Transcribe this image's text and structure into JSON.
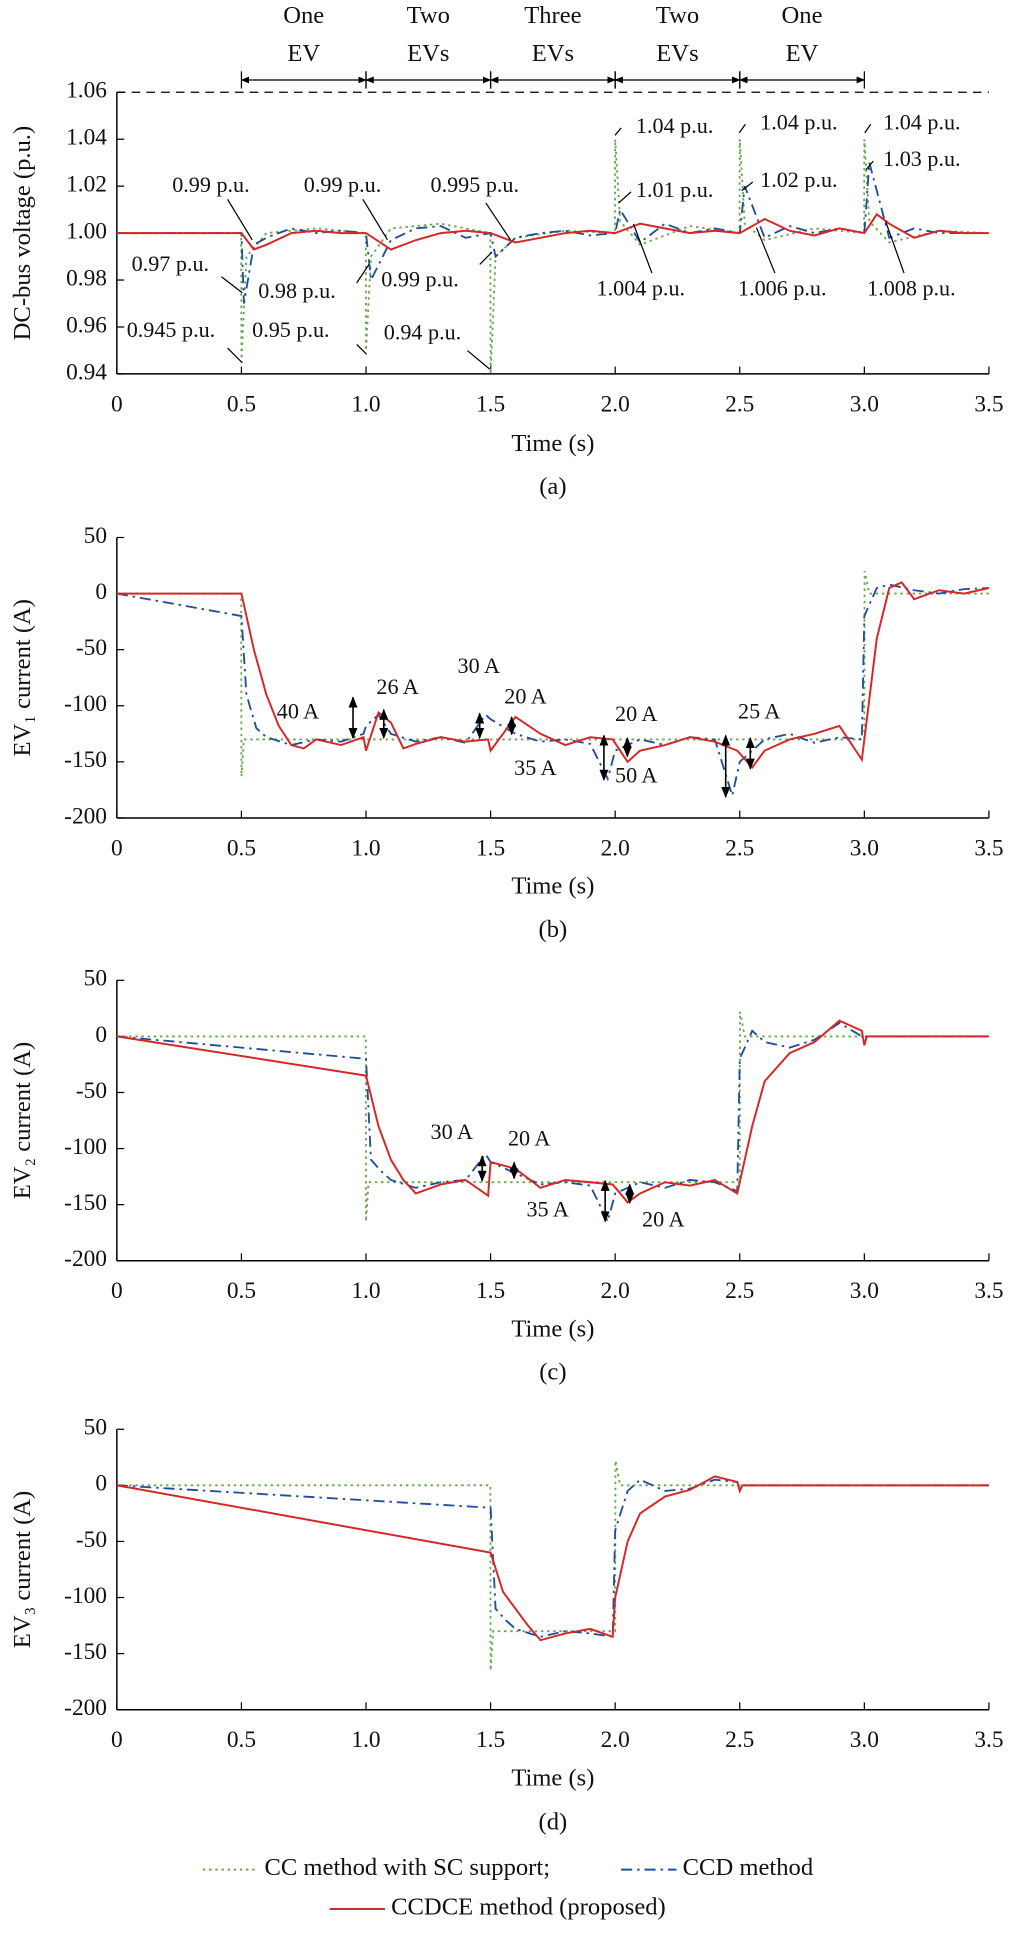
{
  "chart_data": [
    {
      "type": "line",
      "caption": "(a)",
      "xlabel": "Time (s)",
      "ylabel": "DC-bus voltage (p.u.)",
      "xlim": [
        0,
        3.5
      ],
      "ylim": [
        0.94,
        1.06
      ],
      "limit_line": true,
      "xticks": [
        0,
        0.5,
        {
          "value": 1,
          "label": "1.0"
        },
        1.5,
        {
          "value": 2,
          "label": "2.0"
        },
        2.5,
        {
          "value": 3,
          "label": "3.0"
        },
        3.5
      ],
      "yticks": [
        0.94,
        0.96,
        0.98,
        {
          "value": 1,
          "label": "1.00"
        },
        1.02,
        1.04,
        1.06
      ],
      "phases": [
        {
          "label": [
            "One",
            "EV"
          ],
          "start": 0.5,
          "end": 1.0
        },
        {
          "label": [
            "Two",
            "EVs"
          ],
          "start": 1.0,
          "end": 1.5
        },
        {
          "label": [
            "Three",
            "EVs"
          ],
          "start": 1.5,
          "end": 2.0
        },
        {
          "label": [
            "Two",
            "EVs"
          ],
          "start": 2.0,
          "end": 2.5
        },
        {
          "label": [
            "One",
            "EV"
          ],
          "start": 2.5,
          "end": 3.0
        }
      ],
      "annotations": [
        "0.99 p.u.",
        "0.97 p.u.",
        "0.945 p.u.",
        "0.99 p.u.",
        "0.98 p.u.",
        "0.95 p.u.",
        "0.995 p.u.",
        "0.99 p.u.",
        "0.94 p.u.",
        "1.04 p.u.",
        "1.01 p.u.",
        "1.004 p.u.",
        "1.04 p.u.",
        "1.02 p.u.",
        "1.006 p.u.",
        "1.04 p.u.",
        "1.03 p.u.",
        "1.008 p.u."
      ],
      "series": [
        {
          "name": "CC method with SC support;",
          "color": "#6aa84f",
          "style": "dotted",
          "x": [
            0,
            0.499,
            0.5,
            0.52,
            0.6,
            0.8,
            0.999,
            1.0,
            1.02,
            1.1,
            1.3,
            1.499,
            1.5,
            1.52,
            1.6,
            1.8,
            1.999,
            2.0,
            2.02,
            2.1,
            2.3,
            2.499,
            2.5,
            2.52,
            2.6,
            2.8,
            2.999,
            3.0,
            3.02,
            3.1,
            3.3,
            3.5
          ],
          "values": [
            1,
            1,
            0.945,
            0.99,
            1.0,
            1.002,
            1,
            0.95,
            0.99,
            1.002,
            1.004,
            1,
            0.94,
            0.99,
            0.998,
            1.001,
            1,
            1.04,
            1.005,
            0.995,
            1.003,
            1,
            1.04,
            1.004,
            0.997,
            1.002,
            1,
            1.04,
            1.005,
            0.996,
            1.001,
            1
          ]
        },
        {
          "name": "CCD method",
          "color": "#1f4e9c",
          "style": "dashdot",
          "x": [
            0,
            0.5,
            0.51,
            0.55,
            0.6,
            0.7,
            0.8,
            0.9,
            1.0,
            1.02,
            1.1,
            1.2,
            1.3,
            1.4,
            1.5,
            1.52,
            1.6,
            1.7,
            1.8,
            1.9,
            2.0,
            2.02,
            2.1,
            2.2,
            2.3,
            2.4,
            2.5,
            2.52,
            2.6,
            2.7,
            2.8,
            2.9,
            3.0,
            3.02,
            3.1,
            3.2,
            3.3,
            3.5
          ],
          "values": [
            1,
            1,
            0.97,
            0.995,
            0.998,
            1.002,
            1.0,
            1.001,
            1.0,
            0.98,
            0.997,
            1.002,
            1.003,
            0.998,
            1.0,
            0.99,
            0.998,
            1.0,
            1.001,
            0.999,
            1.0,
            1.01,
            0.996,
            1.004,
            1.0,
            1.002,
            1.0,
            1.02,
            0.998,
            1.003,
            1.0,
            1.002,
            1.0,
            1.03,
            0.998,
            1.002,
            1.0,
            1.0
          ]
        },
        {
          "name": "CCDCE method (proposed)",
          "color": "#d62728",
          "style": "solid",
          "x": [
            0,
            0.5,
            0.55,
            0.6,
            0.7,
            0.8,
            0.9,
            1.0,
            1.1,
            1.2,
            1.3,
            1.4,
            1.5,
            1.6,
            1.7,
            1.8,
            1.9,
            2.0,
            2.1,
            2.2,
            2.3,
            2.4,
            2.5,
            2.6,
            2.7,
            2.8,
            2.9,
            3.0,
            3.05,
            3.1,
            3.2,
            3.3,
            3.4,
            3.5
          ],
          "values": [
            1,
            1,
            0.993,
            0.995,
            1.0,
            1.001,
            1.0,
            1.0,
            0.993,
            0.997,
            1.0,
            1.001,
            1.0,
            0.996,
            0.998,
            1.0,
            1.001,
            1.0,
            1.004,
            1.002,
            1.0,
            1.001,
            1.0,
            1.006,
            1.001,
            0.999,
            1.002,
            1.0,
            1.008,
            1.004,
            0.998,
            1.001,
            1.0,
            1.0
          ]
        }
      ]
    },
    {
      "type": "line",
      "caption": "(b)",
      "xlabel": "Time (s)",
      "ylabel": "EV₁ current (A)",
      "xlim": [
        0,
        3.5
      ],
      "ylim": [
        -200,
        50
      ],
      "xticks": [
        0,
        0.5,
        {
          "value": 1,
          "label": "1.0"
        },
        1.5,
        {
          "value": 2,
          "label": "2.0"
        },
        2.5,
        {
          "value": 3,
          "label": "3.0"
        },
        3.5
      ],
      "yticks": [
        -200,
        -150,
        -100,
        -50,
        0,
        50
      ],
      "annotations": [
        "40 A",
        "26 A",
        "30 A",
        "20 A",
        "20 A",
        "35 A",
        "50 A",
        "25 A"
      ],
      "series": [
        {
          "color": "#6aa84f",
          "style": "dotted",
          "x": [
            0,
            0.499,
            0.5,
            0.51,
            3.0,
            3.001,
            3.02,
            3.5
          ],
          "values": [
            0,
            0,
            -163,
            -130,
            -130,
            20,
            0,
            0
          ]
        },
        {
          "color": "#1f4e9c",
          "style": "dashdot",
          "x": [
            0,
            0.5,
            0.52,
            0.56,
            0.6,
            0.7,
            0.8,
            0.9,
            0.99,
            1.0,
            1.05,
            1.1,
            1.2,
            1.3,
            1.4,
            1.48,
            1.5,
            1.6,
            1.7,
            1.8,
            1.9,
            1.97,
            2.0,
            2.1,
            2.2,
            2.3,
            2.4,
            2.47,
            2.5,
            2.6,
            2.7,
            2.8,
            2.9,
            2.99,
            3.0,
            3.05,
            3.1,
            3.2,
            3.3,
            3.4,
            3.5
          ],
          "values": [
            0,
            -20,
            -90,
            -120,
            -128,
            -135,
            -130,
            -132,
            -125,
            -118,
            -108,
            -125,
            -132,
            -128,
            -133,
            -108,
            -112,
            -125,
            -132,
            -130,
            -134,
            -165,
            -140,
            -130,
            -135,
            -128,
            -130,
            -180,
            -150,
            -130,
            -125,
            -133,
            -128,
            -130,
            -20,
            5,
            8,
            3,
            0,
            4,
            5
          ]
        },
        {
          "color": "#d62728",
          "style": "solid",
          "x": [
            0,
            0.5,
            0.55,
            0.6,
            0.65,
            0.7,
            0.75,
            0.8,
            0.9,
            0.99,
            1.0,
            1.05,
            1.1,
            1.15,
            1.2,
            1.3,
            1.4,
            1.49,
            1.5,
            1.6,
            1.7,
            1.8,
            1.9,
            1.99,
            2.05,
            2.1,
            2.2,
            2.3,
            2.4,
            2.49,
            2.55,
            2.6,
            2.7,
            2.8,
            2.9,
            2.99,
            3.05,
            3.1,
            3.15,
            3.2,
            3.3,
            3.4,
            3.5
          ],
          "values": [
            0,
            0,
            -50,
            -90,
            -118,
            -135,
            -138,
            -130,
            -135,
            -128,
            -140,
            -106,
            -115,
            -138,
            -134,
            -128,
            -132,
            -130,
            -140,
            -110,
            -125,
            -135,
            -128,
            -130,
            -150,
            -140,
            -135,
            -128,
            -132,
            -140,
            -155,
            -140,
            -130,
            -125,
            -118,
            -148,
            -40,
            5,
            10,
            -5,
            3,
            0,
            5
          ]
        }
      ]
    },
    {
      "type": "line",
      "caption": "(c)",
      "xlabel": "Time (s)",
      "ylabel": "EV₂ current (A)",
      "xlim": [
        0,
        3.5
      ],
      "ylim": [
        -200,
        50
      ],
      "xticks": [
        0,
        0.5,
        {
          "value": 1,
          "label": "1.0"
        },
        1.5,
        {
          "value": 2,
          "label": "2.0"
        },
        2.5,
        {
          "value": 3,
          "label": "3.0"
        },
        3.5
      ],
      "yticks": [
        -200,
        -150,
        -100,
        -50,
        0,
        50
      ],
      "annotations": [
        "30 A",
        "20 A",
        "35 A",
        "20 A"
      ],
      "series": [
        {
          "color": "#6aa84f",
          "style": "dotted",
          "x": [
            0,
            0.999,
            1.0,
            1.01,
            2.5,
            2.501,
            2.52,
            3.5
          ],
          "values": [
            0,
            0,
            -165,
            -130,
            -130,
            22,
            0,
            0
          ]
        },
        {
          "color": "#1f4e9c",
          "style": "dashdot",
          "x": [
            0,
            1.0,
            1.02,
            1.06,
            1.1,
            1.2,
            1.3,
            1.4,
            1.48,
            1.5,
            1.6,
            1.7,
            1.8,
            1.9,
            1.97,
            2.0,
            2.1,
            2.2,
            2.3,
            2.4,
            2.49,
            2.5,
            2.55,
            2.6,
            2.7,
            2.8,
            2.9,
            2.99,
            3.0,
            3.1,
            3.5
          ],
          "values": [
            0,
            -20,
            -110,
            -120,
            -128,
            -135,
            -130,
            -128,
            -105,
            -112,
            -122,
            -132,
            -130,
            -133,
            -165,
            -140,
            -130,
            -135,
            -128,
            -130,
            -138,
            -20,
            5,
            -5,
            -10,
            -3,
            12,
            0,
            0,
            0,
            0
          ]
        },
        {
          "color": "#d62728",
          "style": "solid",
          "x": [
            0,
            1.0,
            1.05,
            1.1,
            1.15,
            1.2,
            1.3,
            1.4,
            1.49,
            1.5,
            1.6,
            1.7,
            1.8,
            1.9,
            1.99,
            2.05,
            2.1,
            2.2,
            2.3,
            2.4,
            2.49,
            2.55,
            2.6,
            2.7,
            2.8,
            2.9,
            2.99,
            3.0,
            3.01,
            3.5
          ],
          "values": [
            0,
            -35,
            -80,
            -110,
            -128,
            -140,
            -132,
            -128,
            -142,
            -112,
            -118,
            -135,
            -128,
            -130,
            -132,
            -148,
            -140,
            -130,
            -133,
            -128,
            -140,
            -80,
            -40,
            -15,
            -5,
            14,
            5,
            -8,
            0,
            0
          ]
        }
      ]
    },
    {
      "type": "line",
      "caption": "(d)",
      "xlabel": "Time (s)",
      "ylabel": "EV₃ current (A)",
      "xlim": [
        0,
        3.5
      ],
      "ylim": [
        -200,
        50
      ],
      "xticks": [
        0,
        0.5,
        {
          "value": 1,
          "label": "1.0"
        },
        1.5,
        {
          "value": 2,
          "label": "2.0"
        },
        2.5,
        {
          "value": 3,
          "label": "3.0"
        },
        3.5
      ],
      "yticks": [
        -200,
        -150,
        -100,
        -50,
        0,
        50
      ],
      "series": [
        {
          "color": "#6aa84f",
          "style": "dotted",
          "x": [
            0,
            1.499,
            1.5,
            1.51,
            2.0,
            2.001,
            2.02,
            3.5
          ],
          "values": [
            0,
            0,
            -165,
            -130,
            -130,
            22,
            0,
            0
          ]
        },
        {
          "color": "#1f4e9c",
          "style": "dashdot",
          "x": [
            0,
            1.5,
            1.52,
            1.56,
            1.6,
            1.7,
            1.8,
            1.9,
            1.99,
            2.0,
            2.05,
            2.1,
            2.2,
            2.3,
            2.4,
            2.49,
            2.5,
            2.51,
            3.5
          ],
          "values": [
            0,
            -20,
            -110,
            -120,
            -128,
            -135,
            -130,
            -132,
            -135,
            -40,
            -5,
            5,
            -5,
            -3,
            5,
            3,
            -5,
            0,
            0
          ]
        },
        {
          "color": "#d62728",
          "style": "solid",
          "x": [
            0,
            1.5,
            1.55,
            1.6,
            1.65,
            1.7,
            1.8,
            1.9,
            1.99,
            2.0,
            2.05,
            2.1,
            2.2,
            2.3,
            2.4,
            2.49,
            2.5,
            2.51,
            3.5
          ],
          "values": [
            0,
            -60,
            -95,
            -110,
            -125,
            -138,
            -132,
            -128,
            -135,
            -100,
            -50,
            -25,
            -10,
            -4,
            8,
            3,
            -5,
            0,
            0
          ]
        }
      ]
    }
  ]
}
